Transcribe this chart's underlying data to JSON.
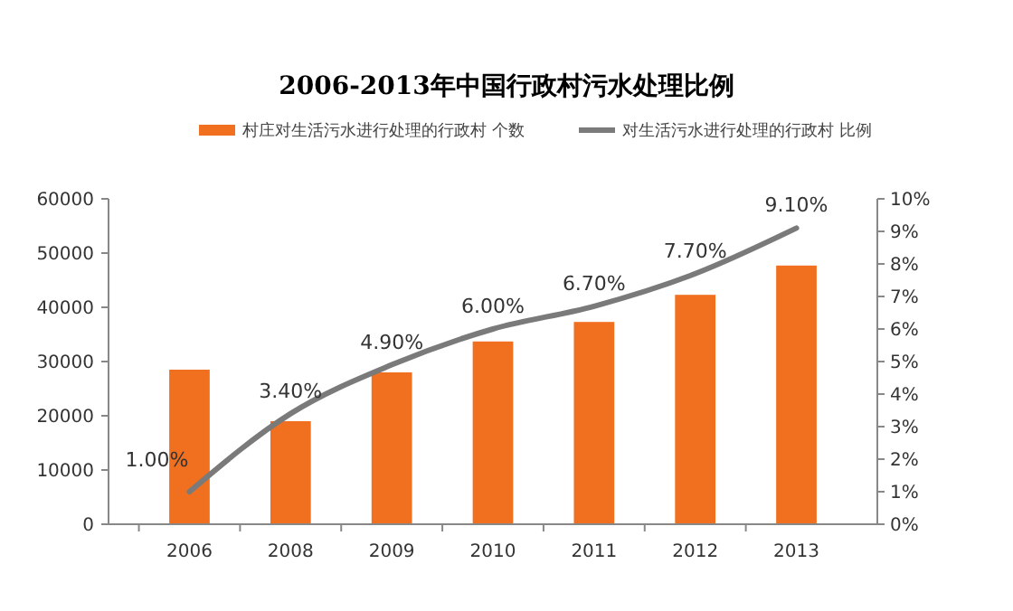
{
  "chart_data": {
    "type": "bar",
    "title": "2006-2013年中国行政村污水处理比例",
    "categories": [
      "2006",
      "2008",
      "2009",
      "2010",
      "2011",
      "2012",
      "2013"
    ],
    "series": [
      {
        "name": "村庄对生活污水进行处理的行政村 个数",
        "color": "#f07020",
        "values": [
          28500,
          19000,
          28000,
          33700,
          37300,
          42300,
          47700
        ]
      },
      {
        "name": "对生活污水进行处理的行政村 比例",
        "type": "line",
        "axis": "y2",
        "color": "#7a7a7a",
        "values": [
          1.0,
          3.4,
          4.9,
          6.0,
          6.7,
          7.7,
          9.1
        ],
        "value_labels": [
          "1.00%",
          "3.40%",
          "4.90%",
          "6.00%",
          "6.70%",
          "7.70%",
          "9.10%"
        ]
      }
    ],
    "ylim": [
      0,
      60000
    ],
    "yticks": [
      0,
      10000,
      20000,
      30000,
      40000,
      50000,
      60000
    ],
    "y2lim": [
      0,
      10
    ],
    "y2ticks": [
      {
        "value": 0,
        "label": "0%"
      },
      {
        "value": 1,
        "label": "1%"
      },
      {
        "value": 2,
        "label": "2%"
      },
      {
        "value": 3,
        "label": "3%"
      },
      {
        "value": 4,
        "label": "4%"
      },
      {
        "value": 5,
        "label": "5%"
      },
      {
        "value": 6,
        "label": "6%"
      },
      {
        "value": 7,
        "label": "7%"
      },
      {
        "value": 8,
        "label": "8%"
      },
      {
        "value": 9,
        "label": "9%"
      },
      {
        "value": 10,
        "label": "10%"
      }
    ],
    "grid": false,
    "legend": "top"
  }
}
